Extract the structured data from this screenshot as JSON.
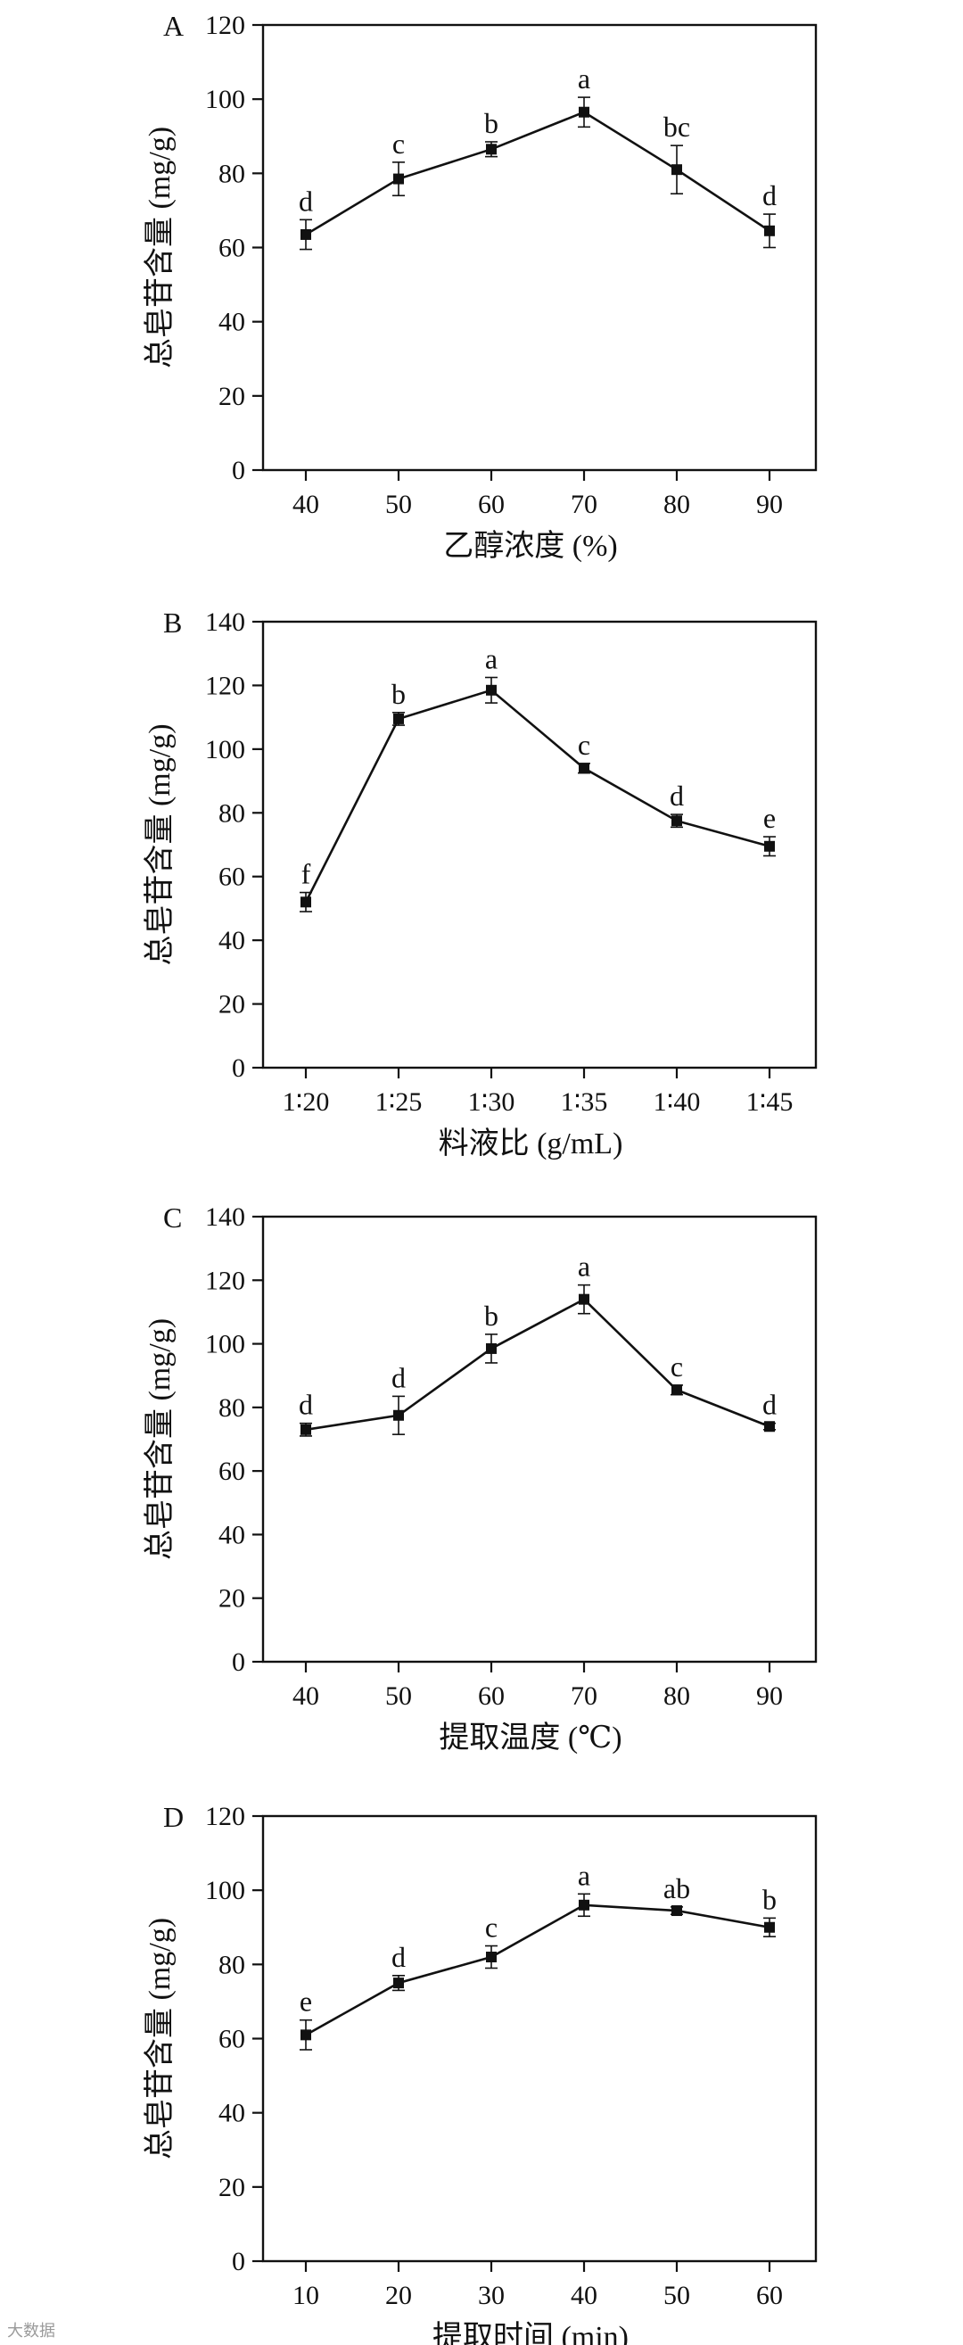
{
  "chart_data": [
    {
      "type": "line",
      "panel_label": "A",
      "xlabel": "乙醇浓度 (%)",
      "ylabel": "总皂苷含量 (mg/g)",
      "categories": [
        "40",
        "50",
        "60",
        "70",
        "80",
        "90"
      ],
      "series": [
        {
          "values": [
            63.5,
            78.5,
            86.5,
            96.5,
            81,
            64.5
          ],
          "errors": [
            4,
            4.5,
            2,
            4,
            6.5,
            4.5
          ],
          "labels": [
            "d",
            "c",
            "b",
            "a",
            "bc",
            "d"
          ]
        }
      ],
      "ylim": [
        0,
        120
      ],
      "yticks": [
        "0",
        "20",
        "40",
        "60",
        "80",
        "100",
        "120"
      ],
      "grid": false
    },
    {
      "type": "line",
      "panel_label": "B",
      "xlabel": "料液比 (g/mL)",
      "ylabel": "总皂苷含量 (mg/g)",
      "categories": [
        "1∶20",
        "1∶25",
        "1∶30",
        "1∶35",
        "1∶40",
        "1∶45"
      ],
      "series": [
        {
          "values": [
            52,
            109.5,
            118.5,
            94,
            77.5,
            69.5
          ],
          "errors": [
            3,
            2,
            4,
            1.5,
            2,
            3
          ],
          "labels": [
            "f",
            "b",
            "a",
            "c",
            "d",
            "e"
          ]
        }
      ],
      "ylim": [
        0,
        140
      ],
      "yticks": [
        "0",
        "20",
        "40",
        "60",
        "80",
        "100",
        "120",
        "140"
      ],
      "grid": false
    },
    {
      "type": "line",
      "panel_label": "C",
      "xlabel": "提取温度 (℃)",
      "ylabel": "总皂苷含量 (mg/g)",
      "categories": [
        "40",
        "50",
        "60",
        "70",
        "80",
        "90"
      ],
      "series": [
        {
          "values": [
            73,
            77.5,
            98.5,
            114,
            85.5,
            74
          ],
          "errors": [
            2,
            6,
            4.5,
            4.5,
            1.5,
            1
          ],
          "labels": [
            "d",
            "d",
            "b",
            "a",
            "c",
            "d"
          ]
        }
      ],
      "ylim": [
        0,
        140
      ],
      "yticks": [
        "0",
        "20",
        "40",
        "60",
        "80",
        "100",
        "120",
        "140"
      ],
      "grid": false
    },
    {
      "type": "line",
      "panel_label": "D",
      "xlabel": "提取时间 (min)",
      "ylabel": "总皂苷含量 (mg/g)",
      "categories": [
        "10",
        "20",
        "30",
        "40",
        "50",
        "60"
      ],
      "series": [
        {
          "values": [
            61,
            75,
            82,
            96,
            94.5,
            90
          ],
          "errors": [
            4,
            2,
            3,
            3,
            1,
            2.5
          ],
          "labels": [
            "e",
            "d",
            "c",
            "a",
            "ab",
            "b"
          ]
        }
      ],
      "ylim": [
        0,
        120
      ],
      "yticks": [
        "0",
        "20",
        "40",
        "60",
        "80",
        "100",
        "120"
      ],
      "grid": false
    }
  ],
  "watermark": "大数据"
}
